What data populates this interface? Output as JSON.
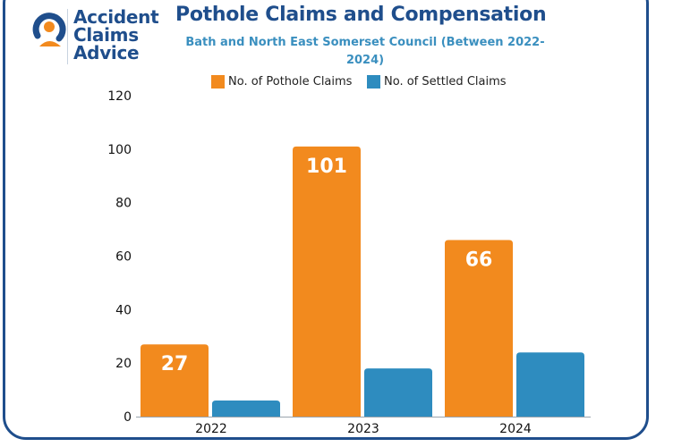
{
  "logo": {
    "line1": "Accident",
    "line2": "Claims",
    "line3": "Advice"
  },
  "colors": {
    "brand": "#1f4e8c",
    "subtitle": "#3a8fbf",
    "claims": "#f28a1e",
    "settled": "#2e8cbf"
  },
  "chart_data": {
    "type": "bar",
    "title": "Pothole Claims and Compensation",
    "subtitle": "Bath and North East Somerset Council (Between 2022-2024)",
    "subtitle_lines": [
      "Bath and North East Somerset Council (Between 2022-",
      "2024)"
    ],
    "categories": [
      "2022",
      "2023",
      "2024"
    ],
    "series": [
      {
        "name": "No. of Pothole Claims",
        "values": [
          27,
          101,
          66
        ],
        "data_labels": [
          "27",
          "101",
          "66"
        ]
      },
      {
        "name": "No. of Settled Claims",
        "values": [
          6,
          18,
          24
        ]
      }
    ],
    "ylim": [
      0,
      120
    ],
    "yticks": [
      "0",
      "20",
      "40",
      "60",
      "80",
      "100",
      "120"
    ],
    "xlabel": "",
    "ylabel": "",
    "legend_position": "top"
  }
}
